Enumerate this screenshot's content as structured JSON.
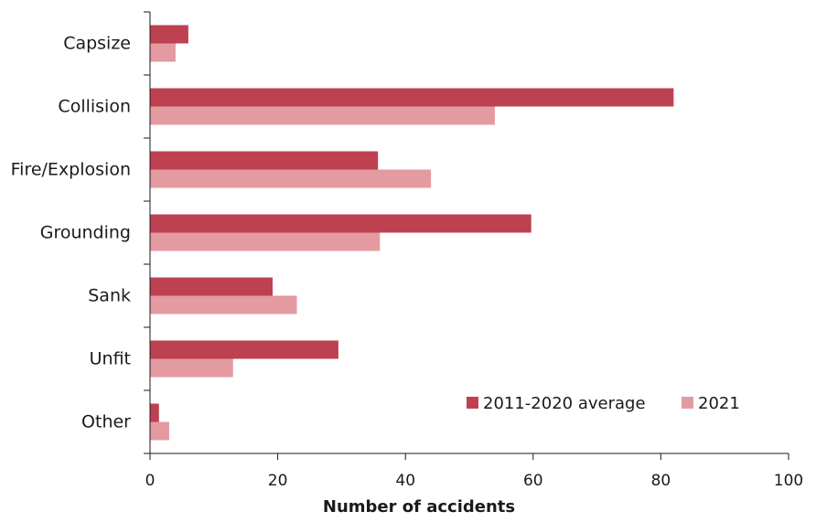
{
  "chart_data": {
    "type": "bar",
    "orientation": "horizontal",
    "categories": [
      "Capsize",
      "Collision",
      "Fire/Explosion",
      "Grounding",
      "Sank",
      "Unfit",
      "Other"
    ],
    "series": [
      {
        "name": "2011-2020 average",
        "color": "#be4151",
        "values": [
          6,
          82,
          35.7,
          59.7,
          19.2,
          29.5,
          1.4
        ]
      },
      {
        "name": "2021",
        "color": "#e39aa0",
        "values": [
          4,
          54,
          44,
          36,
          23,
          13,
          3
        ]
      }
    ],
    "xlabel": "Number of accidents",
    "ylabel": "",
    "xlim": [
      0,
      100
    ],
    "xticks": [
      "0",
      "20",
      "40",
      "60",
      "80",
      "100"
    ],
    "grid": false,
    "legend_position": "bottom-right"
  }
}
